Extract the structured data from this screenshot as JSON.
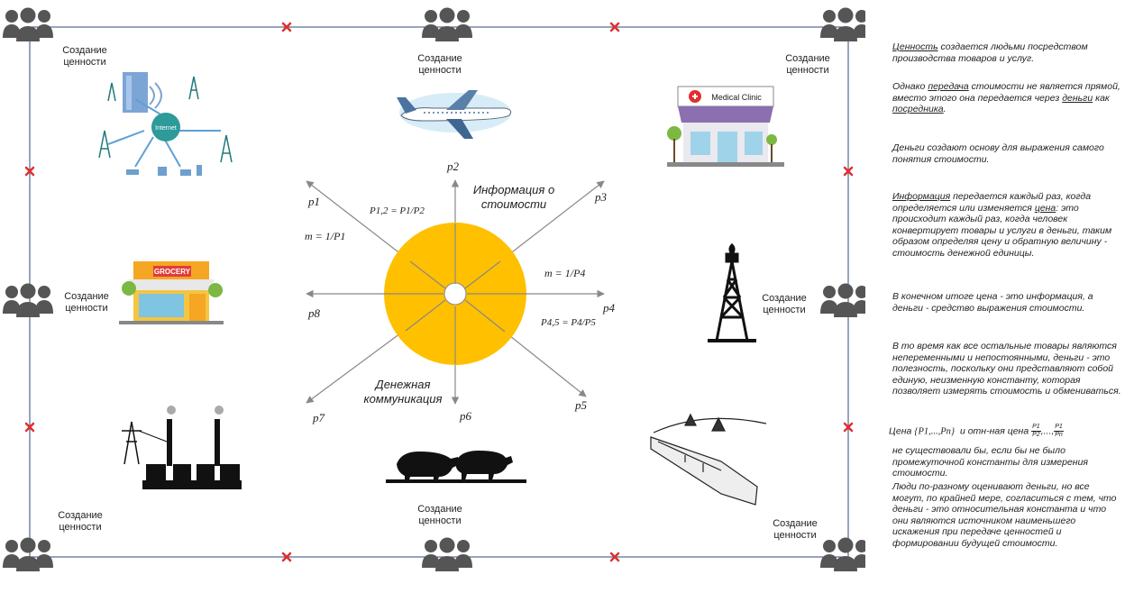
{
  "value_creation_label": "Создание ценности",
  "center_labels": {
    "price_info": "Информация о стоимости",
    "money_comm": "Денежная коммуникация"
  },
  "prices": [
    "p1",
    "p2",
    "p3",
    "p4",
    "p5",
    "p6",
    "p7",
    "p8"
  ],
  "formulas": {
    "m1": "m = 1/P1",
    "p12": "P1,2 = P1/P2",
    "m4": "m = 1/P4",
    "p45": "P4,5 = P4/P5"
  },
  "icons": {
    "internet_network": "Internet",
    "airplane": "airplane",
    "clinic": "Medical Clinic",
    "grocery": "GROCERY",
    "oil_rig": "oil-rig",
    "power_plant": "power-plant",
    "cattle": "cattle",
    "train": "train"
  },
  "colors": {
    "circle": "#FFC000",
    "frame": "#2E4A7A",
    "people": "#555555",
    "cross": "#E03030",
    "arrow": "#888888"
  },
  "notes": {
    "n1_a": "Ценность",
    "n1_b": " создается людьми посредством производства товаров и услуг.",
    "n2_a": "Однако ",
    "n2_b": "передача",
    "n2_c": " стоимости не является прямой, вместо этого она передается через ",
    "n2_d": "деньги",
    "n2_e": " как ",
    "n2_f": "посредника",
    "n2_g": ".",
    "n3": "Деньги создают основу для выражения самого понятия стоимости.",
    "n4_a": "Информация",
    "n4_b": " передается каждый раз, когда определяется или изменяется ",
    "n4_c": "цена",
    "n4_d": ": это происходит каждый раз, когда человек конвертирует товары и услуги в деньги, таким образом определяя цену и обратную величину - стоимость денежной единицы.",
    "n5": "В конечном итоге цена - это информация, а деньги - средство выражения стоимости.",
    "n6": "В то время как все остальные товары являются непеременными и непостоянными, деньги - это полезность, поскольку они представляют собой единую, неизменную константу, которая позволяет измерять стоимость и обмениваться.",
    "n7_a": "Цена",
    "n7_b": "{P1,...,Pn}",
    "n7_c": "и отн-ная цена",
    "n7_d": "P1",
    "n7_e": "P2",
    "n7_f": "P1",
    "n7_g": "Pn",
    "n8": "не существовали бы, если бы не было промежуточной константы для измерения стоимости.",
    "n9": "Люди по-разному оценивают деньги, но все могут, по крайней мере, согласиться с тем, что деньги - это относительная константа и что они являются источником наименьшего искажения при передаче ценностей и формировании будущей стоимости."
  }
}
